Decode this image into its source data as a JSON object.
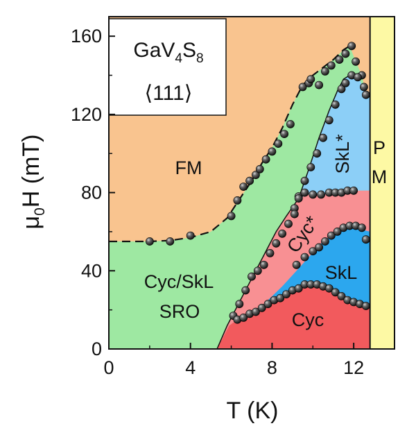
{
  "chart_data": {
    "type": "scatter",
    "title": "",
    "xlabel": "T (K)",
    "ylabel_parts": {
      "mu": "μ",
      "sub": "0",
      "rest": "H (mT)"
    },
    "xlim": [
      0,
      14
    ],
    "ylim": [
      0,
      170
    ],
    "xticks": [
      0,
      4,
      8,
      12
    ],
    "xtick_labels": [
      "0",
      "4",
      "8",
      "12"
    ],
    "yticks": [
      0,
      40,
      80,
      120,
      160
    ],
    "ytick_labels": [
      "0",
      "40",
      "80",
      "120",
      "160"
    ],
    "grid": false,
    "inset": {
      "compound": {
        "base": "GaV",
        "sub1": "4",
        "mid": "S",
        "sub2": "8"
      },
      "direction": "⟨111⟩"
    },
    "region_labels": {
      "fm": "FM",
      "cyc_skl_sro_1": "Cyc/SkL",
      "cyc_skl_sro_2": "SRO",
      "skl_star": "SkL*",
      "cyc_star": "Cyc*",
      "skl": "SkL",
      "cyc": "Cyc",
      "pm_1": "P",
      "pm_2": "M"
    },
    "colors": {
      "fm": "#f9c48f",
      "sro": "#9ee8a2",
      "skl_star": "#8ccff7",
      "cyc_star": "#f89093",
      "skl": "#2ca7ee",
      "cyc": "#f25a5d",
      "pm": "#fdf9a4",
      "points": "#1c1c1c"
    },
    "boundaries": {
      "fm_upper": [
        [
          0,
          55
        ],
        [
          1,
          55
        ],
        [
          2,
          55
        ],
        [
          3,
          55.5
        ],
        [
          4,
          57
        ],
        [
          5,
          60
        ],
        [
          5.8,
          67
        ],
        [
          6.3,
          75
        ],
        [
          7,
          86
        ],
        [
          7.5,
          95
        ],
        [
          8,
          103
        ],
        [
          8.5,
          113
        ],
        [
          9,
          125
        ],
        [
          9.5,
          135
        ],
        [
          10,
          140
        ],
        [
          10.5,
          144
        ],
        [
          11,
          148
        ],
        [
          11.5,
          153
        ],
        [
          11.8,
          155
        ]
      ],
      "fm_outer": [
        [
          11.8,
          155
        ],
        [
          12.1,
          147
        ],
        [
          12.4,
          140
        ],
        [
          12.6,
          130
        ]
      ],
      "skl_star_left": [
        [
          9.3,
          77
        ],
        [
          9.8,
          92
        ],
        [
          10.3,
          108
        ],
        [
          10.8,
          122
        ],
        [
          11.2,
          132
        ],
        [
          11.5,
          138
        ],
        [
          11.8,
          140
        ]
      ],
      "skl_star_top": [
        [
          11.8,
          140
        ],
        [
          12.2,
          140
        ],
        [
          12.5,
          133
        ],
        [
          12.8,
          128
        ]
      ],
      "cyc_star_top": [
        [
          9.3,
          77
        ],
        [
          9.8,
          79
        ],
        [
          10.5,
          79
        ],
        [
          11.3,
          80
        ],
        [
          12,
          81
        ],
        [
          12.8,
          81
        ]
      ],
      "cyc_star_left": [
        [
          9.3,
          77
        ],
        [
          8.7,
          68
        ],
        [
          8.2,
          60
        ],
        [
          7.8,
          52
        ],
        [
          7.3,
          42
        ],
        [
          6.8,
          32
        ],
        [
          6.3,
          22
        ],
        [
          5.8,
          12
        ],
        [
          5.3,
          0
        ]
      ],
      "skl_top": [
        [
          7.8,
          25
        ],
        [
          8.5,
          32
        ],
        [
          9.2,
          40
        ],
        [
          9.8,
          47
        ],
        [
          10.4,
          54
        ],
        [
          11,
          59
        ],
        [
          11.5,
          62
        ],
        [
          12,
          63
        ],
        [
          12.4,
          61
        ],
        [
          12.8,
          60
        ]
      ],
      "cyc_top": [
        [
          5.9,
          12
        ],
        [
          6.3,
          15
        ],
        [
          7,
          19
        ],
        [
          7.8,
          23
        ],
        [
          8.6,
          28
        ],
        [
          9.2,
          31
        ],
        [
          9.6,
          33
        ],
        [
          10.2,
          33
        ],
        [
          10.8,
          32
        ],
        [
          11.3,
          29
        ],
        [
          11.8,
          26
        ],
        [
          12.3,
          24
        ],
        [
          12.8,
          22
        ]
      ],
      "pm_left": 12.8
    },
    "series": [
      {
        "marker": "sphere",
        "points": [
          [
            2.0,
            55
          ],
          [
            3.0,
            55
          ],
          [
            4.0,
            58
          ],
          [
            6.3,
            76
          ],
          [
            6.0,
            68
          ],
          [
            6.6,
            83
          ],
          [
            6.9,
            86
          ],
          [
            7.2,
            89
          ],
          [
            7.4,
            92
          ],
          [
            7.7,
            97
          ],
          [
            8.0,
            101
          ],
          [
            8.3,
            105
          ],
          [
            8.6,
            110
          ],
          [
            8.9,
            115
          ],
          [
            9.5,
            134
          ],
          [
            9.8,
            136
          ],
          [
            9.9,
            138
          ],
          [
            10.3,
            135
          ],
          [
            10.6,
            142
          ],
          [
            10.9,
            145
          ],
          [
            11.3,
            148
          ],
          [
            11.6,
            151
          ],
          [
            11.9,
            155
          ],
          [
            12.1,
            147
          ],
          [
            12.4,
            140
          ],
          [
            12.6,
            130
          ],
          [
            9.3,
            78
          ],
          [
            9.6,
            80
          ],
          [
            10.0,
            79
          ],
          [
            10.4,
            79
          ],
          [
            10.8,
            80
          ],
          [
            11.1,
            80
          ],
          [
            11.4,
            80
          ],
          [
            11.7,
            81
          ],
          [
            12.0,
            81
          ],
          [
            9.1,
            72
          ],
          [
            9.3,
            77
          ],
          [
            9.6,
            86
          ],
          [
            9.9,
            93
          ],
          [
            10.2,
            100
          ],
          [
            10.5,
            108
          ],
          [
            10.8,
            117
          ],
          [
            11.1,
            125
          ],
          [
            11.4,
            133
          ],
          [
            11.6,
            136
          ],
          [
            11.9,
            140
          ],
          [
            12.2,
            139
          ],
          [
            12.5,
            134
          ],
          [
            7.6,
            43
          ],
          [
            7.9,
            49
          ],
          [
            8.2,
            54
          ],
          [
            8.5,
            59
          ],
          [
            8.8,
            64
          ],
          [
            9.1,
            69
          ],
          [
            9.2,
            43
          ],
          [
            9.6,
            47
          ],
          [
            10.0,
            50
          ],
          [
            10.3,
            52
          ],
          [
            10.6,
            55
          ],
          [
            10.9,
            58
          ],
          [
            11.2,
            60
          ],
          [
            11.5,
            62
          ],
          [
            11.8,
            63
          ],
          [
            12.1,
            63
          ],
          [
            12.4,
            62
          ],
          [
            12.6,
            56
          ],
          [
            7.0,
            37
          ],
          [
            7.3,
            40
          ],
          [
            6.7,
            30
          ],
          [
            6.4,
            23
          ],
          [
            6.1,
            17
          ],
          [
            6.3,
            15
          ],
          [
            6.6,
            16
          ],
          [
            6.9,
            18
          ],
          [
            7.2,
            19
          ],
          [
            7.5,
            21
          ],
          [
            7.8,
            23
          ],
          [
            8.1,
            25
          ],
          [
            8.4,
            26
          ],
          [
            8.7,
            28
          ],
          [
            9.0,
            30
          ],
          [
            9.3,
            31
          ],
          [
            9.6,
            33
          ],
          [
            9.9,
            33
          ],
          [
            10.2,
            33
          ],
          [
            10.5,
            32
          ],
          [
            10.8,
            31
          ],
          [
            11.1,
            29
          ],
          [
            11.4,
            27
          ],
          [
            11.7,
            25
          ],
          [
            12.0,
            24
          ],
          [
            12.3,
            23
          ],
          [
            12.6,
            22
          ]
        ]
      }
    ]
  }
}
